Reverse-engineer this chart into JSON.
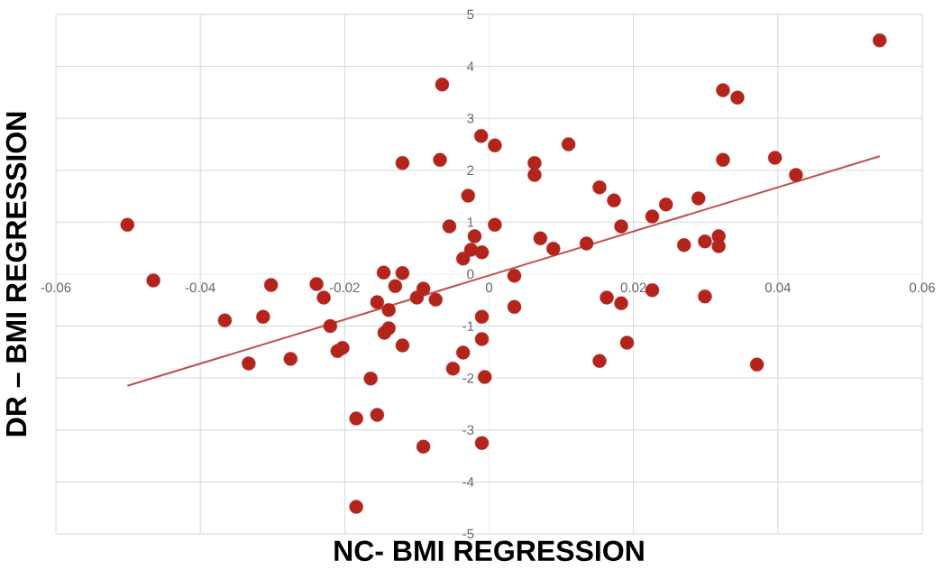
{
  "chart_data": {
    "type": "scatter",
    "xlabel": "NC- BMI REGRESSION",
    "ylabel": "DR – BMI REGRESSION",
    "xlim": [
      -0.06,
      0.06
    ],
    "ylim": [
      -5,
      5
    ],
    "xticks": [
      -0.06,
      -0.04,
      -0.02,
      0,
      0.02,
      0.04,
      0.06
    ],
    "yticks": [
      -5,
      -4,
      -3,
      -2,
      -1,
      0,
      1,
      2,
      3,
      4,
      5
    ],
    "grid": true,
    "series": [
      {
        "type": "scatter",
        "marker": "circle",
        "color": "#b3241c",
        "x": [
          -0.0501,
          -0.0465,
          -0.0366,
          -0.0333,
          -0.0313,
          -0.0302,
          -0.0275,
          -0.0239,
          -0.0229,
          -0.022,
          -0.021,
          -0.0203,
          -0.0184,
          -0.0184,
          -0.0164,
          -0.0155,
          -0.0155,
          -0.0146,
          -0.0145,
          -0.0139,
          -0.0139,
          -0.013,
          -0.012,
          -0.012,
          -0.012,
          -0.01,
          -0.0091,
          -0.0091,
          -0.0074,
          -0.0068,
          -0.0065,
          -0.0055,
          -0.005,
          -0.0036,
          -0.0036,
          -0.0029,
          -0.0025,
          -0.002,
          -0.0011,
          -0.001,
          -0.001,
          -0.001,
          -0.0006,
          -0.001,
          0.0008,
          0.0008,
          0.0035,
          0.0035,
          0.0063,
          0.0063,
          0.0071,
          0.0089,
          0.011,
          0.0135,
          0.0153,
          0.0153,
          0.0163,
          0.0173,
          0.0183,
          0.0183,
          0.0191,
          0.0226,
          0.0226,
          0.0245,
          0.027,
          0.029,
          0.0299,
          0.0299,
          0.0318,
          0.0318,
          0.0324,
          0.0324,
          0.0344,
          0.0371,
          0.0396,
          0.0425,
          0.0541
        ],
        "values": [
          0.95,
          -0.12,
          -0.89,
          -1.72,
          -0.82,
          -0.21,
          -1.63,
          -0.19,
          -0.45,
          -1.0,
          -1.48,
          -1.42,
          -2.78,
          -4.48,
          -2.01,
          -0.54,
          -2.71,
          0.03,
          -1.13,
          -1.04,
          -0.69,
          -0.23,
          0.02,
          -1.37,
          2.14,
          -0.45,
          -0.28,
          -3.32,
          -0.49,
          2.2,
          3.65,
          0.92,
          -1.82,
          -1.51,
          0.3,
          1.51,
          0.47,
          0.73,
          2.66,
          0.42,
          -0.82,
          -1.25,
          -1.98,
          -3.25,
          2.48,
          0.95,
          -0.03,
          -0.63,
          2.14,
          1.91,
          0.69,
          0.49,
          2.5,
          0.59,
          1.67,
          -1.67,
          -0.45,
          1.42,
          0.92,
          -0.56,
          -1.32,
          1.11,
          -0.31,
          1.34,
          0.56,
          1.46,
          0.63,
          -0.43,
          0.54,
          0.73,
          2.2,
          3.54,
          3.4,
          -1.74,
          2.24,
          1.91,
          4.5
        ]
      },
      {
        "type": "line",
        "color": "#c0504d",
        "x": [
          -0.0501,
          0.0541
        ],
        "values": [
          -2.15,
          2.27
        ]
      }
    ]
  }
}
